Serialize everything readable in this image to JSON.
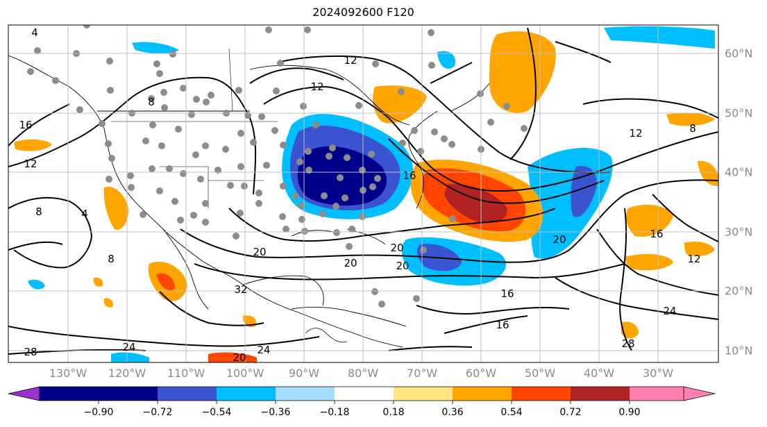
{
  "title": "2024092600 F120",
  "map": {
    "longitude_labels": [
      "130°W",
      "120°W",
      "110°W",
      "100°W",
      "90°W",
      "80°W",
      "70°W",
      "60°W",
      "50°W",
      "40°W",
      "30°W"
    ],
    "latitude_labels": [
      "60°N",
      "50°N",
      "40°N",
      "30°N",
      "20°N",
      "10°N"
    ],
    "contour_labels": [
      "4",
      "8",
      "12",
      "16",
      "20",
      "24",
      "28",
      "32"
    ],
    "observation_marker_color": "#8c8c8c",
    "contour_color": "#000000"
  },
  "colorbar": {
    "ticks": [
      "−0.90",
      "−0.72",
      "−0.54",
      "−0.36",
      "−0.18",
      "0.18",
      "0.36",
      "0.54",
      "0.72",
      "0.90"
    ],
    "colors": [
      "#9932cc",
      "#00008b",
      "#3a53d0",
      "#00bfff",
      "#aadcff",
      "#ffffff",
      "#ffe680",
      "#ffa500",
      "#ff4500",
      "#b22222",
      "#ff7fae"
    ],
    "extend": "both"
  }
}
